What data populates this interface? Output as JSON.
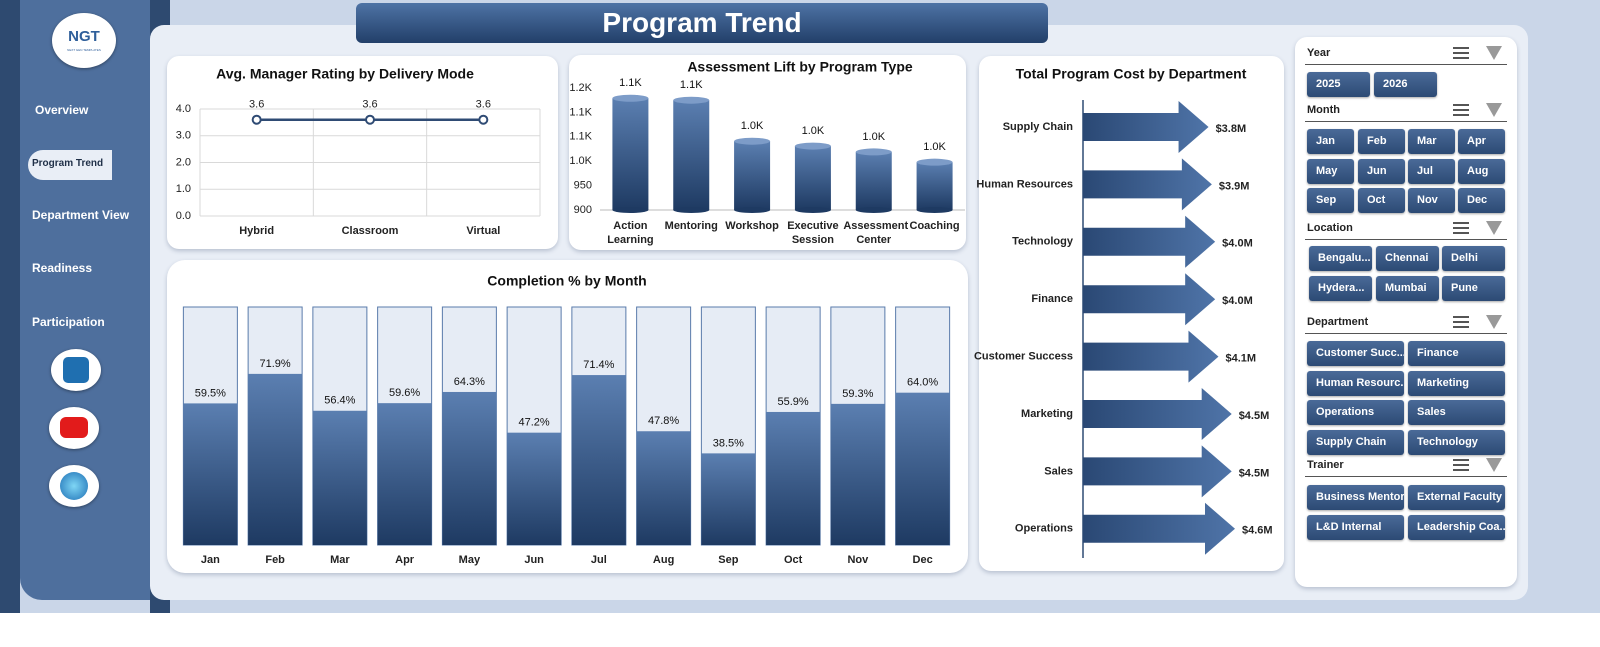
{
  "header": {
    "title": "Program Trend"
  },
  "logo": {
    "title": "NGT",
    "subtitle": "NEXT GEN TEMPLATES"
  },
  "nav": [
    "Overview",
    "Program Trend",
    "Department View",
    "Readiness",
    "Participation"
  ],
  "slicers": [
    {
      "title": "Year",
      "items": [
        "2025",
        "2026"
      ]
    },
    {
      "title": "Month",
      "items": [
        "Jan",
        "Feb",
        "Mar",
        "Apr",
        "May",
        "Jun",
        "Jul",
        "Aug",
        "Sep",
        "Oct",
        "Nov",
        "Dec"
      ]
    },
    {
      "title": "Location",
      "items": [
        "Bengalu...",
        "Chennai",
        "Delhi",
        "Hydera...",
        "Mumbai",
        "Pune"
      ]
    },
    {
      "title": "Department",
      "items": [
        "Customer Succ...",
        "Finance",
        "Human Resourc...",
        "Marketing",
        "Operations",
        "Sales",
        "Supply Chain",
        "Technology"
      ]
    },
    {
      "title": "Trainer",
      "items": [
        "Business Mentor",
        "External Faculty",
        "L&D Internal",
        "Leadership Coa..."
      ]
    }
  ],
  "chart_data": [
    {
      "type": "line",
      "title": "Avg. Manager Rating by Delivery Mode",
      "categories": [
        "Hybrid",
        "Classroom",
        "Virtual"
      ],
      "values": [
        3.6,
        3.6,
        3.6
      ],
      "color": "#2f4b74",
      "ylim": [
        0,
        4
      ],
      "yticks": [
        {
          "value": 0,
          "label": "0.0"
        },
        {
          "value": 1,
          "label": "1.0"
        },
        {
          "value": 2,
          "label": "2.0"
        },
        {
          "value": 3,
          "label": "3.0"
        },
        {
          "value": 4,
          "label": "4.0"
        }
      ],
      "grid": true
    },
    {
      "type": "bar",
      "shape": "cylinder",
      "title": "Assessment Lift by Program Type",
      "categories": [
        "Action Learning",
        "Mentoring",
        "Workshop",
        "Executive Session",
        "Assessment Center",
        "Coaching"
      ],
      "values": [
        1129,
        1125,
        1041,
        1031,
        1019,
        998
      ],
      "value_labels": [
        "1.1K",
        "1.1K",
        "1.0K",
        "1.0K",
        "1.0K",
        "1.0K"
      ],
      "color": "#2f4b74",
      "ylim": [
        900,
        1150
      ],
      "yticks": [
        900,
        950,
        {
          "value": 1000,
          "label": "1.0K"
        },
        {
          "value": 1050,
          "label": "1.1K"
        },
        {
          "value": 1100,
          "label": "1.1K"
        },
        {
          "value": 1150,
          "label": "1.2K"
        }
      ]
    },
    {
      "type": "hbar",
      "title": "Total Program Cost by Department",
      "categories": [
        "Supply Chain",
        "Human Resources",
        "Technology",
        "Finance",
        "Customer Success",
        "Marketing",
        "Sales",
        "Operations"
      ],
      "values": [
        3.8,
        3.9,
        4.0,
        4.0,
        4.1,
        4.5,
        4.5,
        4.6
      ],
      "value_labels": [
        "$3.8M",
        "$3.9M",
        "$4.0M",
        "$4.0M",
        "$4.1M",
        "$4.5M",
        "$4.5M",
        "$4.6M"
      ],
      "color": "#2f4b74"
    },
    {
      "type": "bar",
      "track": true,
      "title": "Completion % by Month",
      "categories": [
        "Jan",
        "Feb",
        "Mar",
        "Apr",
        "May",
        "Jun",
        "Jul",
        "Aug",
        "Sep",
        "Oct",
        "Nov",
        "Dec"
      ],
      "values": [
        59.5,
        71.9,
        56.4,
        59.6,
        64.3,
        47.2,
        71.4,
        47.8,
        38.5,
        55.9,
        59.3,
        64
      ],
      "value_labels": [
        "59.5%",
        "71.9%",
        "56.4%",
        "59.6%",
        "64.3%",
        "47.2%",
        "71.4%",
        "47.8%",
        "38.5%",
        "55.9%",
        "59.3%",
        "64.0%"
      ],
      "color": "#2f4b74",
      "ylim": [
        0,
        100
      ]
    }
  ]
}
